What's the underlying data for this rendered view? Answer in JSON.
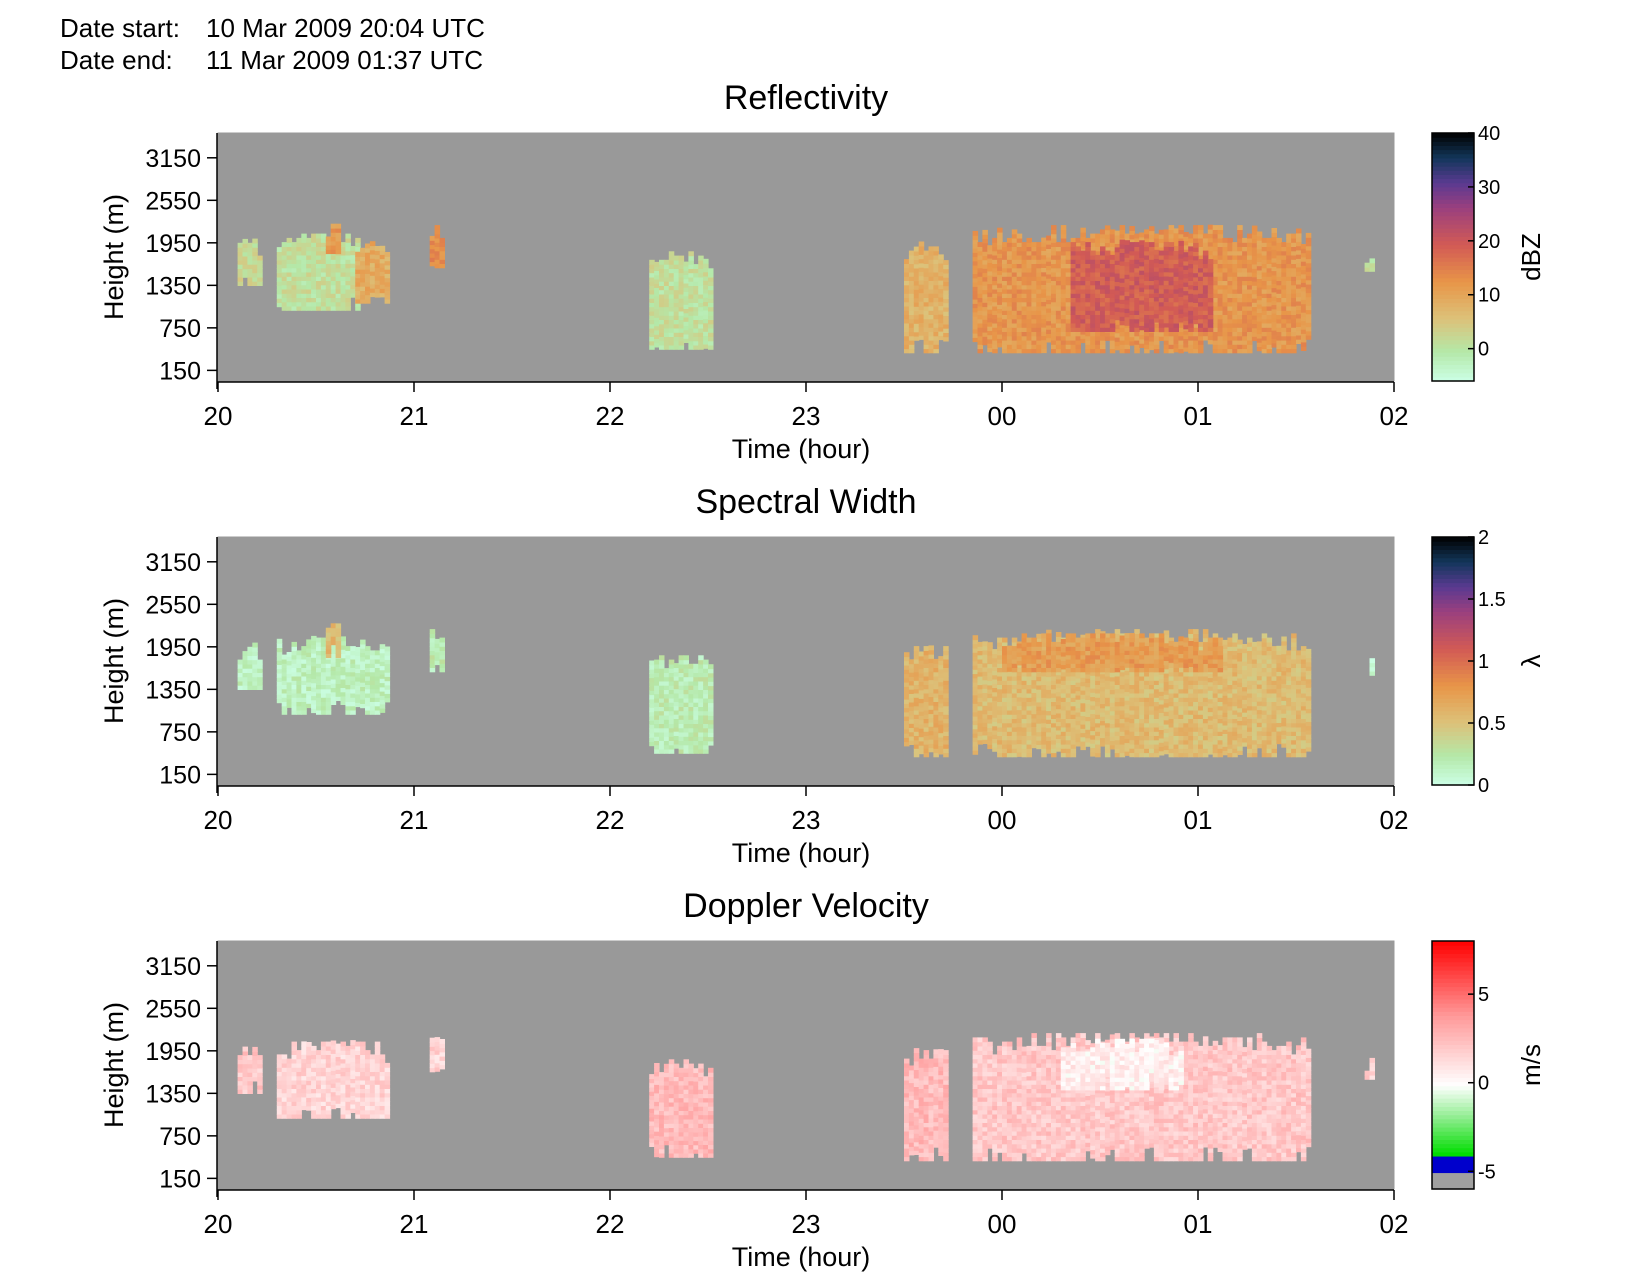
{
  "header": {
    "start_label": "Date start:",
    "start_value": "10 Mar 2009 20:04 UTC",
    "end_label": "Date end:",
    "end_value": "11 Mar 2009 01:37 UTC"
  },
  "colors": {
    "background_fill": "#999999"
  },
  "chart_data": [
    {
      "type": "heatmap",
      "title": "Reflectivity",
      "xlabel": "Time (hour)",
      "ylabel": "Height (m)",
      "xticks": [
        "20",
        "21",
        "22",
        "23",
        "00",
        "01",
        "02"
      ],
      "yticks": [
        "3150",
        "2550",
        "1950",
        "1350",
        "750",
        "150"
      ],
      "colorbar": {
        "label": "dBZ",
        "ticks": [
          "40",
          "30",
          "20",
          "10",
          "0"
        ],
        "range": [
          -6,
          40
        ]
      },
      "echoes": [
        {
          "t": [
            20.1,
            20.2
          ],
          "h": [
            1350,
            2000
          ],
          "v": 2
        },
        {
          "t": [
            20.3,
            20.7
          ],
          "h": [
            1000,
            2050
          ],
          "v": 1
        },
        {
          "t": [
            20.55,
            20.62
          ],
          "h": [
            1800,
            2300
          ],
          "v": 12
        },
        {
          "t": [
            20.7,
            20.85
          ],
          "h": [
            1100,
            1950
          ],
          "v": 9
        },
        {
          "t": [
            21.08,
            21.14
          ],
          "h": [
            1600,
            2200
          ],
          "v": 13
        },
        {
          "t": [
            22.2,
            22.5
          ],
          "h": [
            450,
            1800
          ],
          "v": 1
        },
        {
          "t": [
            23.5,
            23.7
          ],
          "h": [
            400,
            1950
          ],
          "v": 8
        },
        {
          "t": [
            23.85,
            25.55
          ],
          "h": [
            400,
            2150
          ],
          "v": 12
        },
        {
          "t": [
            24.35,
            25.05
          ],
          "h": [
            700,
            1950
          ],
          "v": 19
        },
        {
          "t": [
            25.85,
            25.88
          ],
          "h": [
            1550,
            1800
          ],
          "v": 0
        }
      ]
    },
    {
      "type": "heatmap",
      "title": "Spectral Width",
      "xlabel": "Time (hour)",
      "ylabel": "Height (m)",
      "xticks": [
        "20",
        "21",
        "22",
        "23",
        "00",
        "01",
        "02"
      ],
      "yticks": [
        "3150",
        "2550",
        "1950",
        "1350",
        "750",
        "150"
      ],
      "colorbar": {
        "label": "λ",
        "ticks": [
          "2",
          "1.5",
          "1",
          "0.5",
          "0"
        ],
        "range": [
          0,
          2
        ]
      },
      "echoes": [
        {
          "t": [
            20.1,
            20.2
          ],
          "h": [
            1350,
            2000
          ],
          "v": 0.15
        },
        {
          "t": [
            20.3,
            20.85
          ],
          "h": [
            1000,
            2050
          ],
          "v": 0.15
        },
        {
          "t": [
            20.55,
            20.62
          ],
          "h": [
            1800,
            2300
          ],
          "v": 0.55
        },
        {
          "t": [
            21.08,
            21.14
          ],
          "h": [
            1600,
            2200
          ],
          "v": 0.2
        },
        {
          "t": [
            22.2,
            22.5
          ],
          "h": [
            450,
            1800
          ],
          "v": 0.2
        },
        {
          "t": [
            23.5,
            23.7
          ],
          "h": [
            400,
            1950
          ],
          "v": 0.6
        },
        {
          "t": [
            23.85,
            25.55
          ],
          "h": [
            400,
            2150
          ],
          "v": 0.55
        },
        {
          "t": [
            24.0,
            25.1
          ],
          "h": [
            1600,
            2100
          ],
          "v": 0.75
        },
        {
          "t": [
            25.85,
            25.88
          ],
          "h": [
            1550,
            1800
          ],
          "v": 0.1
        }
      ]
    },
    {
      "type": "heatmap",
      "title": "Doppler Velocity",
      "xlabel": "Time (hour)",
      "ylabel": "Height (m)",
      "xticks": [
        "20",
        "21",
        "22",
        "23",
        "00",
        "01",
        "02"
      ],
      "yticks": [
        "3150",
        "2550",
        "1950",
        "1350",
        "750",
        "150"
      ],
      "colorbar": {
        "label": "m/s",
        "ticks": [
          "5",
          "0",
          "-5"
        ],
        "range": [
          -6,
          8
        ]
      },
      "echoes": [
        {
          "t": [
            20.1,
            20.2
          ],
          "h": [
            1350,
            2000
          ],
          "v": 2
        },
        {
          "t": [
            20.3,
            20.85
          ],
          "h": [
            1000,
            2050
          ],
          "v": 1.5
        },
        {
          "t": [
            21.08,
            21.14
          ],
          "h": [
            1600,
            2200
          ],
          "v": 1.5
        },
        {
          "t": [
            22.2,
            22.5
          ],
          "h": [
            450,
            1800
          ],
          "v": 2.5
        },
        {
          "t": [
            23.5,
            23.7
          ],
          "h": [
            400,
            1950
          ],
          "v": 2.5
        },
        {
          "t": [
            23.85,
            25.55
          ],
          "h": [
            400,
            2150
          ],
          "v": 2
        },
        {
          "t": [
            24.3,
            24.9
          ],
          "h": [
            1400,
            2100
          ],
          "v": 0.5
        },
        {
          "t": [
            25.85,
            25.88
          ],
          "h": [
            1550,
            1800
          ],
          "v": 1.5
        }
      ]
    }
  ]
}
